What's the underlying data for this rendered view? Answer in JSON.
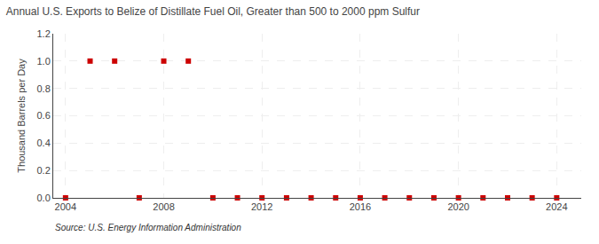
{
  "chart_data": {
    "type": "scatter",
    "title": "Annual U.S. Exports to Belize of Distillate Fuel Oil, Greater than 500 to 2000 ppm Sulfur",
    "ylabel": "Thousand Barrels per Day",
    "annotations": [
      "Source: U.S. Energy Information Administration"
    ],
    "x": [
      2004,
      2005,
      2006,
      2007,
      2008,
      2009,
      2010,
      2011,
      2012,
      2013,
      2014,
      2015,
      2016,
      2017,
      2018,
      2019,
      2020,
      2021,
      2022,
      2023,
      2024
    ],
    "values": [
      0.0,
      1.0,
      1.0,
      0.0,
      1.0,
      1.0,
      0.0,
      0.0,
      0.0,
      0.0,
      0.0,
      0.0,
      0.0,
      0.0,
      0.0,
      0.0,
      0.0,
      0.0,
      0.0,
      0.0,
      0.0
    ],
    "color": "#cc0000",
    "marker": "square",
    "xlim": [
      2003.5,
      2025
    ],
    "ylim": [
      0.0,
      1.2
    ],
    "xticks": [
      2004,
      2008,
      2012,
      2016,
      2020,
      2024
    ],
    "yticks": [
      {
        "value": 0.0,
        "label": "0.0"
      },
      0.2,
      0.4,
      0.6,
      0.8,
      {
        "value": 1.0,
        "label": "1.0"
      },
      1.2
    ],
    "grid": true
  }
}
